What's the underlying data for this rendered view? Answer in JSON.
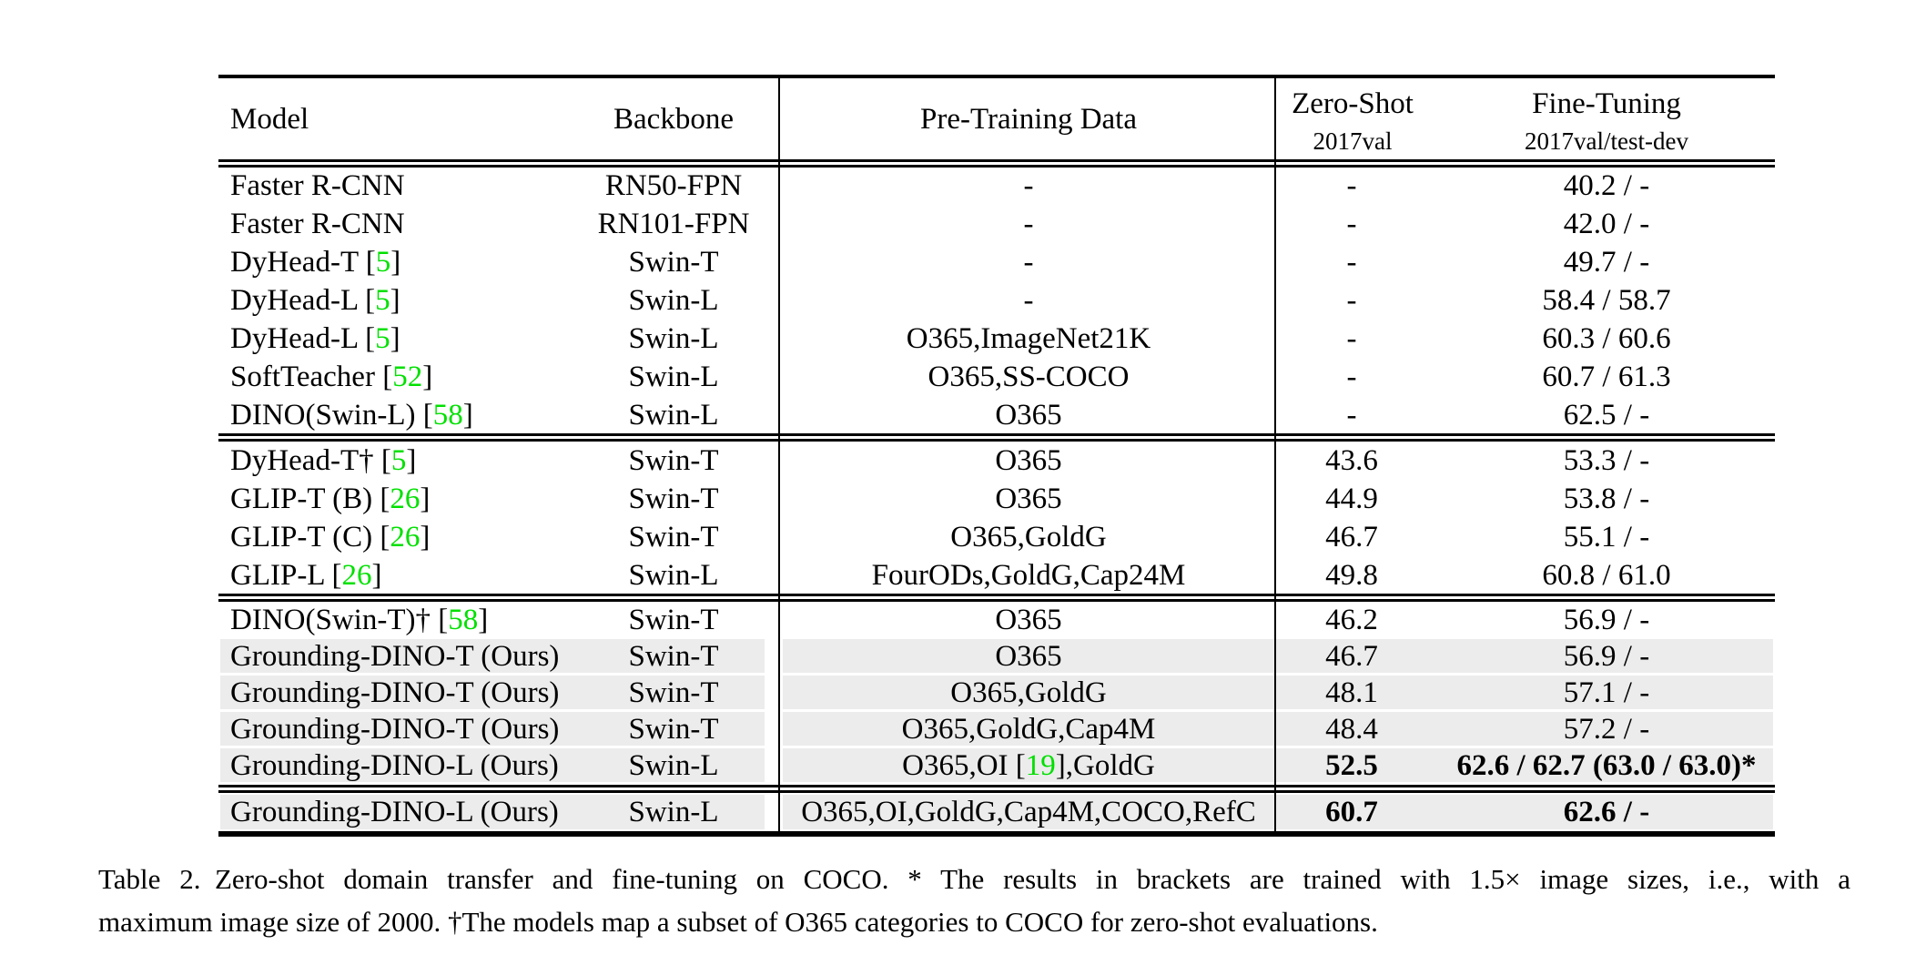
{
  "table": {
    "columns": [
      {
        "id": "model",
        "label": "Model"
      },
      {
        "id": "backbone",
        "label": "Backbone"
      },
      {
        "id": "pretrain",
        "label": "Pre-Training Data"
      },
      {
        "id": "zero_shot",
        "label": "Zero-Shot",
        "sublabel": "2017val"
      },
      {
        "id": "fine_tune",
        "label": "Fine-Tuning",
        "sublabel": "2017val/test-dev"
      }
    ],
    "colors": {
      "highlight_row": "#ececec",
      "citation_green": "#00e000",
      "text": "#000000",
      "rule": "#000000"
    },
    "groups": [
      {
        "rows": [
          {
            "model": "Faster R-CNN",
            "backbone": "RN50-FPN",
            "pretrain": "-",
            "zero_shot": "-",
            "fine_tune": "40.2 / -",
            "highlight": false,
            "bold": false
          },
          {
            "model": "Faster R-CNN",
            "backbone": "RN101-FPN",
            "pretrain": "-",
            "zero_shot": "-",
            "fine_tune": "42.0 / -",
            "highlight": false,
            "bold": false
          },
          {
            "model": "DyHead-T [5]",
            "backbone": "Swin-T",
            "pretrain": "-",
            "zero_shot": "-",
            "fine_tune": "49.7 / -",
            "highlight": false,
            "bold": false
          },
          {
            "model": "DyHead-L [5]",
            "backbone": "Swin-L",
            "pretrain": "-",
            "zero_shot": "-",
            "fine_tune": "58.4 / 58.7",
            "highlight": false,
            "bold": false
          },
          {
            "model": "DyHead-L [5]",
            "backbone": "Swin-L",
            "pretrain": "O365,ImageNet21K",
            "zero_shot": "-",
            "fine_tune": "60.3 / 60.6",
            "highlight": false,
            "bold": false
          },
          {
            "model": "SoftTeacher [52]",
            "backbone": "Swin-L",
            "pretrain": "O365,SS-COCO",
            "zero_shot": "-",
            "fine_tune": "60.7 / 61.3",
            "highlight": false,
            "bold": false
          },
          {
            "model": "DINO(Swin-L) [58]",
            "backbone": "Swin-L",
            "pretrain": "O365",
            "zero_shot": "-",
            "fine_tune": "62.5 / -",
            "highlight": false,
            "bold": false
          }
        ]
      },
      {
        "rows": [
          {
            "model": "DyHead-T† [5]",
            "backbone": "Swin-T",
            "pretrain": "O365",
            "zero_shot": "43.6",
            "fine_tune": "53.3 / -",
            "highlight": false,
            "bold": false
          },
          {
            "model": "GLIP-T (B) [26]",
            "backbone": "Swin-T",
            "pretrain": "O365",
            "zero_shot": "44.9",
            "fine_tune": "53.8 / -",
            "highlight": false,
            "bold": false
          },
          {
            "model": "GLIP-T (C) [26]",
            "backbone": "Swin-T",
            "pretrain": "O365,GoldG",
            "zero_shot": "46.7",
            "fine_tune": "55.1 / -",
            "highlight": false,
            "bold": false
          },
          {
            "model": "GLIP-L [26]",
            "backbone": "Swin-L",
            "pretrain": "FourODs,GoldG,Cap24M",
            "zero_shot": "49.8",
            "fine_tune": "60.8 / 61.0",
            "highlight": false,
            "bold": false
          }
        ]
      },
      {
        "rows": [
          {
            "model": "DINO(Swin-T)† [58]",
            "backbone": "Swin-T",
            "pretrain": "O365",
            "zero_shot": "46.2",
            "fine_tune": "56.9 / -",
            "highlight": false,
            "bold": false
          },
          {
            "model": "Grounding-DINO-T (Ours)",
            "backbone": "Swin-T",
            "pretrain": "O365",
            "zero_shot": "46.7",
            "fine_tune": "56.9 / -",
            "highlight": true,
            "bold": false
          },
          {
            "model": "Grounding-DINO-T (Ours)",
            "backbone": "Swin-T",
            "pretrain": "O365,GoldG",
            "zero_shot": "48.1",
            "fine_tune": "57.1 / -",
            "highlight": true,
            "bold": false
          },
          {
            "model": "Grounding-DINO-T (Ours)",
            "backbone": "Swin-T",
            "pretrain": "O365,GoldG,Cap4M",
            "zero_shot": "48.4",
            "fine_tune": "57.2 / -",
            "highlight": true,
            "bold": false
          },
          {
            "model": "Grounding-DINO-L (Ours)",
            "backbone": "Swin-L",
            "pretrain": "O365,OI [19],GoldG",
            "zero_shot": "52.5",
            "fine_tune": "62.6 / 62.7 (63.0 / 63.0)*",
            "highlight": true,
            "bold": true
          }
        ]
      },
      {
        "rows": [
          {
            "model": "Grounding-DINO-L (Ours)",
            "backbone": "Swin-L",
            "pretrain": "O365,OI,GoldG,Cap4M,COCO,RefC",
            "zero_shot": "60.7",
            "fine_tune": "62.6 / -",
            "highlight": true,
            "bold": true
          }
        ]
      }
    ]
  },
  "caption": {
    "lines": [
      "Table 2. Zero-shot domain transfer and fine-tuning on COCO. * The results in brackets are trained with 1.5× image sizes, i.e., with a",
      "maximum image size of 2000. †The models map a subset of O365 categories to COCO for zero-shot evaluations."
    ]
  }
}
